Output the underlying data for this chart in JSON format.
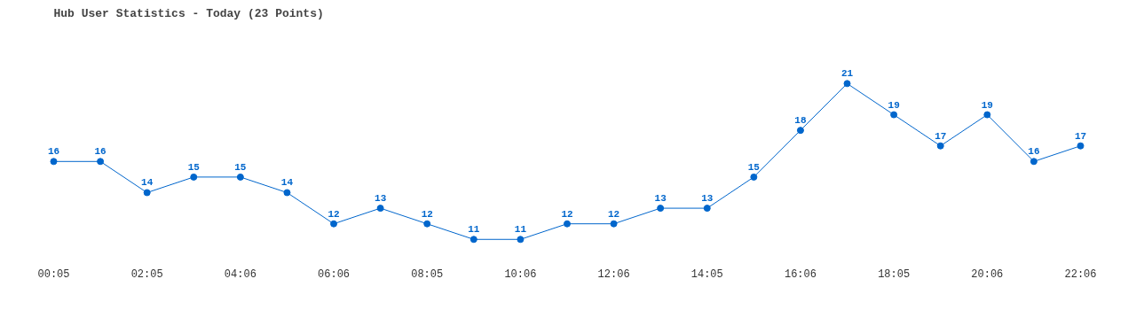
{
  "chart_data": {
    "type": "line",
    "title": "Hub User Statistics - Today (23 Points)",
    "categories": [
      "00:05",
      null,
      "02:05",
      null,
      "04:06",
      null,
      "06:06",
      null,
      "08:05",
      null,
      "10:06",
      null,
      "12:06",
      null,
      "14:05",
      null,
      "16:06",
      null,
      "18:05",
      null,
      "20:06",
      null,
      "22:06"
    ],
    "series": [
      {
        "color": "#0066cc",
        "values": [
          16,
          16,
          14,
          15,
          15,
          14,
          12,
          13,
          12,
          11,
          11,
          12,
          12,
          13,
          13,
          15,
          18,
          21,
          19,
          17,
          19,
          16,
          17
        ]
      }
    ],
    "data_labels": true,
    "marker": "circle",
    "line_style": "solid"
  }
}
